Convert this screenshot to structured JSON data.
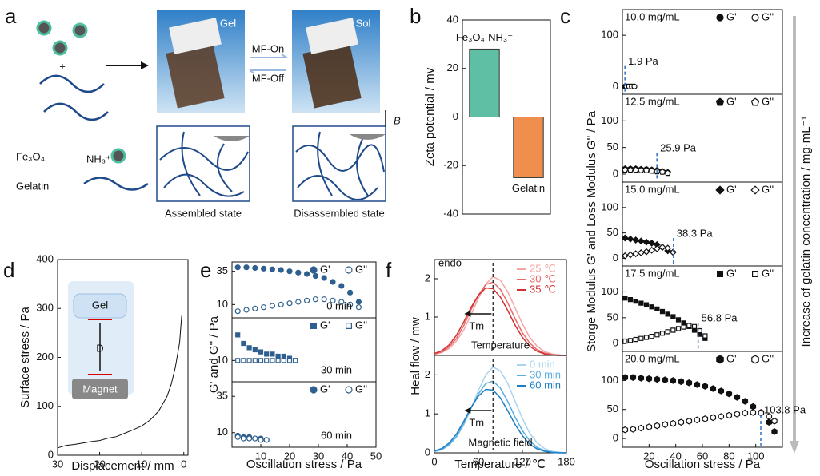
{
  "figure": {
    "panel_labels": [
      "a",
      "b",
      "c",
      "d",
      "e",
      "f"
    ],
    "a": {
      "gel": "Gel",
      "sol": "Sol",
      "mf_on": "MF-On",
      "mf_off": "MF-Off",
      "assembled": "Assembled state",
      "disassembled": "Disassembled state",
      "fe3o4": "Fe₃O₄",
      "nh3": "NH₃⁺",
      "gelatin": "Gelatin",
      "plus": "+",
      "field": "B"
    },
    "c_ylabel": "Storge Modulus G' and Loss Modulus G'' / Pa",
    "c_xlabel": "Oscillation stress / Pa",
    "c_side": "Increase of gelatin concentration  / mg·mL⁻¹",
    "d_inset": {
      "gel": "Gel",
      "d": "D",
      "magnet": "Magnet"
    },
    "e_ylabel": "G' and G'' / Pa",
    "e_xlabel": "Oscillation stress / Pa",
    "f_ylabel": "Heal flow / mw",
    "f_xlabel": "Temperature / ℃",
    "f_endo": "endo"
  },
  "chart_data": [
    {
      "type": "bar",
      "ylabel": "Zeta potential / mv",
      "categories": [
        "Fe₃O₄-NH₃⁺",
        "Gelatin"
      ],
      "values": [
        28,
        -25
      ],
      "colors": [
        "#5fbfa5",
        "#ef8e4d"
      ],
      "ylim": [
        -40,
        40
      ],
      "yticks": [
        -40,
        -20,
        0,
        20,
        40
      ]
    },
    {
      "type": "scatter",
      "title": "10.0 mg/mL",
      "marker": "star",
      "xlim": [
        0,
        120
      ],
      "ylim": [
        -15,
        150
      ],
      "yticks": [
        0,
        100
      ],
      "annotations": [
        {
          "value": 1.9,
          "label": "1.9 Pa"
        }
      ],
      "series": [
        {
          "name": "G'",
          "filled": true,
          "x": [
            2,
            4,
            6,
            8
          ],
          "values": [
            0,
            0,
            0,
            0
          ]
        },
        {
          "name": "G''",
          "filled": false,
          "x": [
            3,
            5,
            7,
            9
          ],
          "values": [
            0,
            0,
            0,
            0
          ]
        }
      ]
    },
    {
      "type": "scatter",
      "title": "12.5 mg/mL",
      "marker": "pentagon",
      "xlim": [
        0,
        120
      ],
      "ylim": [
        -15,
        150
      ],
      "yticks": [
        0,
        50,
        100
      ],
      "annotations": [
        {
          "value": 25.9,
          "label": "25.9 Pa"
        }
      ],
      "series": [
        {
          "name": "G'",
          "filled": true,
          "x": [
            2,
            6,
            10,
            14,
            18,
            22,
            26,
            30,
            34
          ],
          "values": [
            10,
            10,
            10,
            9,
            9,
            8,
            7,
            5,
            3
          ]
        },
        {
          "name": "G''",
          "filled": false,
          "x": [
            2,
            6,
            10,
            14,
            18,
            22,
            26,
            30,
            34
          ],
          "values": [
            8,
            8,
            8,
            7,
            7,
            6,
            5,
            4,
            2
          ]
        }
      ]
    },
    {
      "type": "scatter",
      "title": "15.0 mg/mL",
      "marker": "diamond",
      "xlim": [
        0,
        120
      ],
      "ylim": [
        -15,
        150
      ],
      "yticks": [
        0,
        50,
        100
      ],
      "annotations": [
        {
          "value": 38.3,
          "label": "38.3 Pa"
        }
      ],
      "series": [
        {
          "name": "G'",
          "filled": true,
          "x": [
            2,
            6,
            10,
            14,
            18,
            22,
            26,
            30,
            34,
            38
          ],
          "values": [
            40,
            38,
            36,
            34,
            32,
            30,
            27,
            22,
            15,
            12
          ]
        },
        {
          "name": "G''",
          "filled": false,
          "x": [
            2,
            6,
            10,
            14,
            18,
            22,
            26,
            30,
            34,
            38
          ],
          "values": [
            5,
            7,
            9,
            11,
            13,
            16,
            19,
            22,
            20,
            12
          ]
        }
      ]
    },
    {
      "type": "scatter",
      "title": "17.5 mg/mL",
      "marker": "square",
      "xlim": [
        0,
        120
      ],
      "ylim": [
        -15,
        150
      ],
      "yticks": [
        0,
        50,
        100
      ],
      "annotations": [
        {
          "value": 56.8,
          "label": "56.8 Pa"
        }
      ],
      "series": [
        {
          "name": "G'",
          "filled": true,
          "x": [
            2,
            6,
            10,
            14,
            18,
            22,
            26,
            30,
            34,
            38,
            42,
            46,
            50,
            54,
            58,
            62
          ],
          "values": [
            88,
            85,
            82,
            78,
            75,
            71,
            67,
            62,
            57,
            52,
            46,
            40,
            33,
            26,
            18,
            10
          ]
        },
        {
          "name": "G''",
          "filled": false,
          "x": [
            2,
            6,
            10,
            14,
            18,
            22,
            26,
            30,
            34,
            38,
            42,
            46,
            50,
            54,
            58,
            62
          ],
          "values": [
            5,
            6,
            8,
            10,
            12,
            14,
            17,
            20,
            23,
            26,
            29,
            32,
            35,
            33,
            25,
            15
          ]
        }
      ]
    },
    {
      "type": "scatter",
      "title": "20.0 mg/mL",
      "marker": "hexagon",
      "xlim": [
        0,
        120
      ],
      "ylim": [
        -15,
        150
      ],
      "yticks": [
        0,
        50,
        100
      ],
      "xticks": [
        20,
        40,
        60,
        80,
        100
      ],
      "annotations": [
        {
          "value": 103.8,
          "label": "103.8 Pa"
        }
      ],
      "series": [
        {
          "name": "G'",
          "filled": true,
          "x": [
            2,
            8,
            14,
            20,
            26,
            32,
            38,
            44,
            50,
            56,
            62,
            68,
            74,
            80,
            86,
            92,
            98,
            104,
            110,
            114
          ],
          "values": [
            105,
            105,
            104,
            103,
            102,
            101,
            100,
            98,
            96,
            93,
            90,
            86,
            82,
            77,
            71,
            64,
            55,
            45,
            28,
            12
          ]
        },
        {
          "name": "G''",
          "filled": false,
          "x": [
            2,
            8,
            14,
            20,
            26,
            32,
            38,
            44,
            50,
            56,
            62,
            68,
            74,
            80,
            86,
            92,
            98,
            104,
            110,
            114
          ],
          "values": [
            15,
            16,
            18,
            20,
            22,
            24,
            26,
            28,
            30,
            32,
            34,
            36,
            38,
            40,
            42,
            44,
            45,
            44,
            38,
            30
          ]
        }
      ]
    },
    {
      "type": "line",
      "xlabel": "Displacement / mm",
      "ylabel": "Surface stress / Pa",
      "xlim": [
        30,
        -1
      ],
      "ylim": [
        0,
        400
      ],
      "xticks": [
        30,
        20,
        10,
        0
      ],
      "yticks": [
        0,
        100,
        200,
        300,
        400
      ],
      "color": "#111",
      "x": [
        30,
        28,
        26,
        24,
        22,
        20,
        18,
        16,
        14,
        12,
        10,
        8,
        6,
        4,
        3,
        2,
        1,
        0.5
      ],
      "values": [
        15,
        20,
        22,
        25,
        28,
        30,
        35,
        38,
        45,
        52,
        60,
        72,
        90,
        120,
        145,
        180,
        230,
        285
      ]
    },
    {
      "type": "scatter",
      "title": "0 min",
      "marker": "circle",
      "xlim": [
        0,
        50
      ],
      "ylim": [
        0,
        42
      ],
      "yticks": [
        10,
        35
      ],
      "series": [
        {
          "name": "G'",
          "filled": true,
          "x": [
            2,
            5,
            8,
            11,
            14,
            17,
            20,
            23,
            26,
            29,
            32,
            35,
            38,
            41,
            44
          ],
          "values": [
            38,
            38,
            37.5,
            37,
            36.5,
            36,
            35,
            34,
            33,
            31.5,
            30,
            27,
            24,
            19,
            12
          ]
        },
        {
          "name": "G''",
          "filled": false,
          "x": [
            2,
            5,
            8,
            11,
            14,
            17,
            20,
            23,
            26,
            29,
            32,
            35,
            38,
            41,
            44
          ],
          "values": [
            5,
            6,
            7,
            8,
            9,
            10,
            11,
            12,
            13,
            14,
            14,
            13,
            12,
            10,
            8
          ]
        }
      ]
    },
    {
      "type": "scatter",
      "title": "30 min",
      "marker": "square",
      "xlim": [
        0,
        50
      ],
      "ylim": [
        0,
        30
      ],
      "yticks": [
        10
      ],
      "series": [
        {
          "name": "G'",
          "filled": true,
          "x": [
            2,
            4,
            6,
            8,
            10,
            12,
            14,
            16,
            18,
            20,
            22
          ],
          "values": [
            22,
            18,
            16,
            15,
            14,
            13,
            13,
            12,
            12,
            11,
            10
          ]
        },
        {
          "name": "G''",
          "filled": false,
          "x": [
            2,
            4,
            6,
            8,
            10,
            12,
            14,
            16,
            18,
            20,
            22
          ],
          "values": [
            10,
            10,
            10,
            10,
            10,
            10,
            10,
            10,
            10,
            10,
            10
          ]
        }
      ]
    },
    {
      "type": "scatter",
      "title": "60 min",
      "marker": "star",
      "xlim": [
        0,
        50
      ],
      "ylim": [
        0,
        45
      ],
      "yticks": [
        10,
        35
      ],
      "xticks": [
        10,
        20,
        30,
        40,
        50
      ],
      "series": [
        {
          "name": "G'",
          "filled": true,
          "x": [
            2,
            4,
            6,
            8,
            10,
            12
          ],
          "values": [
            8,
            7,
            7,
            6,
            6,
            5
          ]
        },
        {
          "name": "G''",
          "filled": false,
          "x": [
            2,
            4,
            6,
            8,
            10,
            12
          ],
          "values": [
            7,
            6,
            6,
            6,
            5,
            5
          ]
        }
      ]
    },
    {
      "type": "line",
      "title": "Temperature",
      "xlim": [
        0,
        180
      ],
      "ylim": [
        0,
        2.5
      ],
      "yticks": [
        1,
        2
      ],
      "annotations": [
        {
          "value": 80,
          "label": "Tm"
        }
      ],
      "x": [
        0,
        10,
        20,
        30,
        40,
        50,
        60,
        70,
        80,
        90,
        100,
        110,
        120,
        130,
        140,
        150,
        160,
        170,
        180
      ],
      "series": [
        {
          "name": "25 ℃",
          "color": "#f4a6a6",
          "values": [
            0.03,
            0.07,
            0.18,
            0.37,
            0.66,
            1.06,
            1.49,
            1.86,
            2.05,
            1.96,
            1.66,
            1.24,
            0.82,
            0.47,
            0.24,
            0.1,
            0.04,
            0.01,
            0
          ]
        },
        {
          "name": "30 ℃",
          "color": "#e86a6a",
          "values": [
            0.04,
            0.09,
            0.22,
            0.44,
            0.78,
            1.19,
            1.57,
            1.85,
            1.91,
            1.72,
            1.37,
            0.96,
            0.59,
            0.32,
            0.15,
            0.06,
            0.02,
            0.01,
            0
          ]
        },
        {
          "name": "35 ℃",
          "color": "#d03030",
          "values": [
            0.05,
            0.12,
            0.27,
            0.52,
            0.87,
            1.25,
            1.57,
            1.76,
            1.74,
            1.52,
            1.17,
            0.79,
            0.47,
            0.24,
            0.11,
            0.04,
            0.01,
            0,
            0
          ]
        }
      ]
    },
    {
      "type": "line",
      "title": "Magnetic field",
      "xlim": [
        0,
        180
      ],
      "ylim": [
        0,
        2.5
      ],
      "yticks": [
        0,
        1,
        2
      ],
      "xticks": [
        0,
        60,
        120,
        180
      ],
      "annotations": [
        {
          "value": 80,
          "label": "Tm"
        }
      ],
      "x": [
        0,
        10,
        20,
        30,
        40,
        50,
        60,
        70,
        80,
        90,
        100,
        110,
        120,
        130,
        140,
        150,
        160,
        170,
        180
      ],
      "series": [
        {
          "name": "0 min",
          "color": "#a8d4ee",
          "values": [
            0.03,
            0.08,
            0.19,
            0.4,
            0.71,
            1.14,
            1.6,
            2,
            2.2,
            2.1,
            1.78,
            1.33,
            0.88,
            0.5,
            0.26,
            0.11,
            0.04,
            0.01,
            0
          ]
        },
        {
          "name": "30 min",
          "color": "#5aaee0",
          "values": [
            0.04,
            0.08,
            0.21,
            0.42,
            0.75,
            1.15,
            1.51,
            1.78,
            1.84,
            1.66,
            1.32,
            0.92,
            0.57,
            0.31,
            0.14,
            0.06,
            0.02,
            0.01,
            0
          ]
        },
        {
          "name": "60 min",
          "color": "#1f7fc4",
          "values": [
            0.05,
            0.11,
            0.25,
            0.48,
            0.81,
            1.16,
            1.46,
            1.63,
            1.61,
            1.41,
            1.08,
            0.73,
            0.44,
            0.22,
            0.1,
            0.04,
            0.01,
            0,
            0
          ]
        }
      ]
    }
  ]
}
